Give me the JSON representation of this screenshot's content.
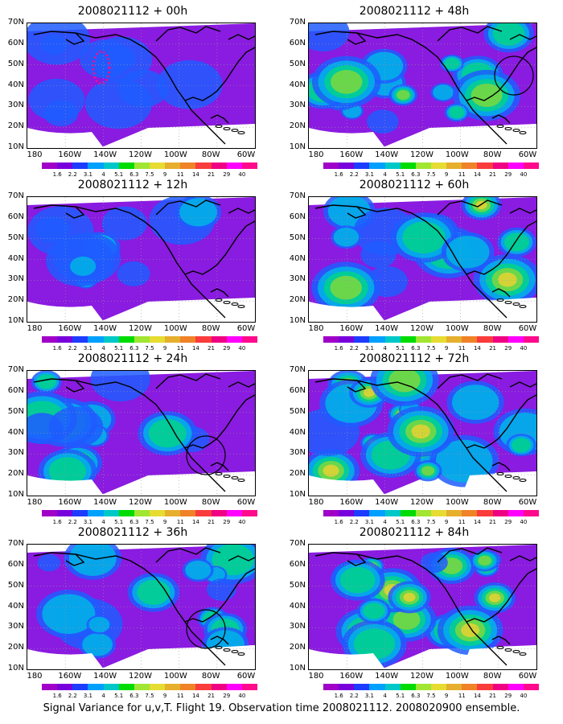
{
  "panels": [
    {
      "title": "2008021112 + 00h",
      "intensity": 0.15,
      "circle": false,
      "track": true
    },
    {
      "title": "2008021112 + 48h",
      "intensity": 0.65,
      "circle": true,
      "track": false
    },
    {
      "title": "2008021112 + 12h",
      "intensity": 0.3,
      "circle": false,
      "track": false
    },
    {
      "title": "2008021112 + 60h",
      "intensity": 0.75,
      "circle": false,
      "track": false
    },
    {
      "title": "2008021112 + 24h",
      "intensity": 0.45,
      "circle": true,
      "track": false
    },
    {
      "title": "2008021112 + 72h",
      "intensity": 0.85,
      "circle": false,
      "track": false
    },
    {
      "title": "2008021112 + 36h",
      "intensity": 0.55,
      "circle": true,
      "track": false
    },
    {
      "title": "2008021112 + 84h",
      "intensity": 0.9,
      "circle": false,
      "track": false
    }
  ],
  "lat_labels": [
    "70N",
    "60N",
    "50N",
    "40N",
    "30N",
    "20N",
    "10N"
  ],
  "lon_labels": [
    "180",
    "160W",
    "140W",
    "120W",
    "100W",
    "80W",
    "60W"
  ],
  "colorbar": {
    "ticks": [
      "1.6",
      "2.2",
      "3.1",
      "4",
      "5.1",
      "6.3",
      "7.5",
      "9",
      "11",
      "14",
      "21",
      "29",
      "40"
    ],
    "colors": [
      "#a000c8",
      "#7800dc",
      "#1e3cff",
      "#00a0ff",
      "#00c8c8",
      "#00dc00",
      "#a0e632",
      "#e6dc32",
      "#e6af2d",
      "#f08228",
      "#fa3c3c",
      "#f00082",
      "#ff00ff",
      "#ff0a8c"
    ]
  },
  "caption": "Signal Variance for u,v,T. Flight 19. Observation time 2008021112. 2008020900 ensemble."
}
